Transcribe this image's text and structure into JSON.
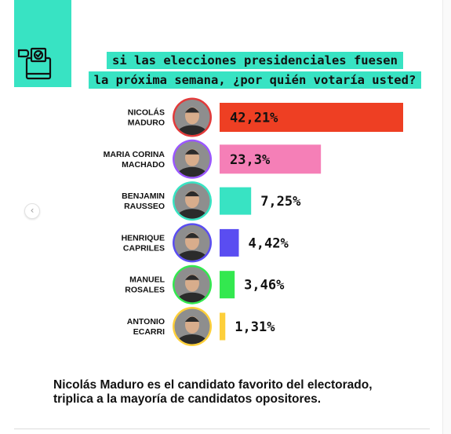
{
  "title_lines": [
    "si las elecciones presidenciales fuesen",
    "la próxima semana, ¿por quién votaría usted?"
  ],
  "footer_lines": [
    "Nicolás Maduro es el candidato favorito del electorado,",
    "triplica a la mayoría de candidatos opositores."
  ],
  "carousel": {
    "prev_icon": "chevron-left-icon",
    "prev_glyph": "‹"
  },
  "colors": {
    "accent": "#38e3c3",
    "portrait_background": "#8e8e8e",
    "portrait_face": "#d8ad8c",
    "portrait_suit": "#2b2b2b"
  },
  "chart_data": {
    "type": "bar",
    "orientation": "horizontal",
    "categories": [
      [
        "NICOLÁS",
        "MADURO"
      ],
      [
        "MARIA CORINA",
        "MACHADO"
      ],
      [
        "BENJAMIN",
        "RAUSSEO"
      ],
      [
        "HENRIQUE",
        "CAPRILES"
      ],
      [
        "MANUEL",
        "ROSALES"
      ],
      [
        "ANTONIO",
        "ECARRI"
      ]
    ],
    "values": [
      42.21,
      23.3,
      7.25,
      4.42,
      3.46,
      1.31
    ],
    "value_labels": [
      "42,21%",
      "23,3%",
      "7,25%",
      "4,42%",
      "3,46%",
      "1,31%"
    ],
    "bar_colors": [
      "#ee3f23",
      "#f57fb7",
      "#38e3c3",
      "#5a4df1",
      "#33e84f",
      "#fdcf3a"
    ],
    "portrait_ring_colors": [
      "#e23a3a",
      "#9a57ff",
      "#38e3c3",
      "#5a4df1",
      "#33e84f",
      "#fdcf3a"
    ],
    "grid": false,
    "legend": "none"
  }
}
